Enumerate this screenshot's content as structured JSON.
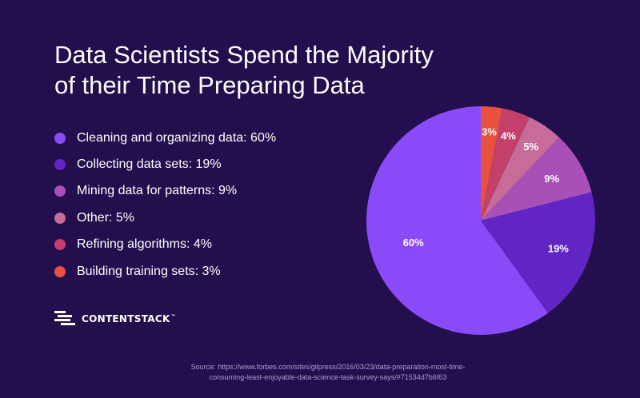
{
  "title_lines": [
    "Data Scientists Spend the Majority",
    "of their Time Preparing Data"
  ],
  "chart_data": {
    "type": "pie",
    "title": "Data Scientists Spend the Majority of their Time Preparing Data",
    "legend_position": "left",
    "slices": [
      {
        "label": "Cleaning and organizing data: 60%",
        "value": 60,
        "value_label": "60%",
        "color": "#8b4af7"
      },
      {
        "label": "Collecting data sets: 19%",
        "value": 19,
        "value_label": "19%",
        "color": "#6025c4"
      },
      {
        "label": "Mining data for patterns: 9%",
        "value": 9,
        "value_label": "9%",
        "color": "#a94fb8"
      },
      {
        "label": "Other: 5%",
        "value": 5,
        "value_label": "5%",
        "color": "#c76b98"
      },
      {
        "label": "Refining algorithms: 4%",
        "value": 4,
        "value_label": "4%",
        "color": "#c2406a"
      },
      {
        "label": "Building training sets: 3%",
        "value": 3,
        "value_label": "3%",
        "color": "#e8513f"
      }
    ]
  },
  "logo": {
    "text": "CONTENTSTACK",
    "tm": "™"
  },
  "source_lines": [
    "Source: https://www.forbes.com/sites/gilpress/2016/03/23/data-preparation-most-time-",
    "consuming-least-enjoyable-data-science-task-survey-says/#71534d7b6f63"
  ]
}
